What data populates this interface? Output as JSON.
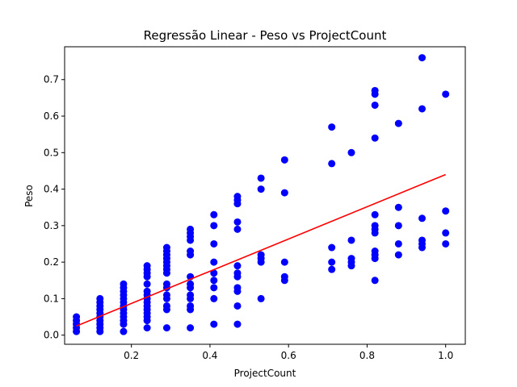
{
  "chart_data": {
    "type": "scatter",
    "title": "Regressão Linear - Peso vs ProjectCount",
    "xlabel": "ProjectCount",
    "ylabel": "Peso",
    "xlim": [
      0.03,
      1.05
    ],
    "ylim": [
      -0.025,
      0.79
    ],
    "xticks": [
      0.2,
      0.4,
      0.6,
      0.8,
      1.0
    ],
    "xtick_labels": [
      "0.2",
      "0.4",
      "0.6",
      "0.8",
      "1.0"
    ],
    "yticks": [
      0.0,
      0.1,
      0.2,
      0.3,
      0.4,
      0.5,
      0.6,
      0.7
    ],
    "ytick_labels": [
      "0.0",
      "0.1",
      "0.2",
      "0.3",
      "0.4",
      "0.5",
      "0.6",
      "0.7"
    ],
    "grid": false,
    "legend": "none",
    "colors": {
      "points": "#0000ff",
      "line": "#ff0000",
      "axes": "#000000"
    },
    "series": [
      {
        "kind": "scatter",
        "points": [
          [
            0.06,
            0.01
          ],
          [
            0.06,
            0.02
          ],
          [
            0.06,
            0.03
          ],
          [
            0.06,
            0.04
          ],
          [
            0.06,
            0.05
          ],
          [
            0.12,
            0.01
          ],
          [
            0.12,
            0.02
          ],
          [
            0.12,
            0.03
          ],
          [
            0.12,
            0.04
          ],
          [
            0.12,
            0.05
          ],
          [
            0.12,
            0.06
          ],
          [
            0.12,
            0.07
          ],
          [
            0.12,
            0.08
          ],
          [
            0.12,
            0.09
          ],
          [
            0.12,
            0.1
          ],
          [
            0.18,
            0.01
          ],
          [
            0.18,
            0.03
          ],
          [
            0.18,
            0.04
          ],
          [
            0.18,
            0.05
          ],
          [
            0.18,
            0.06
          ],
          [
            0.18,
            0.07
          ],
          [
            0.18,
            0.08
          ],
          [
            0.18,
            0.09
          ],
          [
            0.18,
            0.1
          ],
          [
            0.18,
            0.11
          ],
          [
            0.18,
            0.12
          ],
          [
            0.18,
            0.13
          ],
          [
            0.18,
            0.14
          ],
          [
            0.24,
            0.02
          ],
          [
            0.24,
            0.04
          ],
          [
            0.24,
            0.05
          ],
          [
            0.24,
            0.06
          ],
          [
            0.24,
            0.07
          ],
          [
            0.24,
            0.08
          ],
          [
            0.24,
            0.09
          ],
          [
            0.24,
            0.1
          ],
          [
            0.24,
            0.11
          ],
          [
            0.24,
            0.12
          ],
          [
            0.24,
            0.14
          ],
          [
            0.24,
            0.16
          ],
          [
            0.24,
            0.17
          ],
          [
            0.24,
            0.18
          ],
          [
            0.24,
            0.19
          ],
          [
            0.29,
            0.02
          ],
          [
            0.29,
            0.07
          ],
          [
            0.29,
            0.08
          ],
          [
            0.29,
            0.1
          ],
          [
            0.29,
            0.11
          ],
          [
            0.29,
            0.13
          ],
          [
            0.29,
            0.14
          ],
          [
            0.29,
            0.17
          ],
          [
            0.29,
            0.18
          ],
          [
            0.29,
            0.19
          ],
          [
            0.29,
            0.2
          ],
          [
            0.29,
            0.21
          ],
          [
            0.29,
            0.22
          ],
          [
            0.29,
            0.23
          ],
          [
            0.29,
            0.24
          ],
          [
            0.35,
            0.02
          ],
          [
            0.35,
            0.07
          ],
          [
            0.35,
            0.08
          ],
          [
            0.35,
            0.1
          ],
          [
            0.35,
            0.11
          ],
          [
            0.35,
            0.13
          ],
          [
            0.35,
            0.14
          ],
          [
            0.35,
            0.16
          ],
          [
            0.35,
            0.22
          ],
          [
            0.35,
            0.23
          ],
          [
            0.35,
            0.26
          ],
          [
            0.35,
            0.27
          ],
          [
            0.35,
            0.28
          ],
          [
            0.35,
            0.29
          ],
          [
            0.41,
            0.03
          ],
          [
            0.41,
            0.1
          ],
          [
            0.41,
            0.13
          ],
          [
            0.41,
            0.15
          ],
          [
            0.41,
            0.17
          ],
          [
            0.41,
            0.2
          ],
          [
            0.41,
            0.25
          ],
          [
            0.41,
            0.3
          ],
          [
            0.41,
            0.33
          ],
          [
            0.47,
            0.03
          ],
          [
            0.47,
            0.08
          ],
          [
            0.47,
            0.12
          ],
          [
            0.47,
            0.13
          ],
          [
            0.47,
            0.16
          ],
          [
            0.47,
            0.17
          ],
          [
            0.47,
            0.19
          ],
          [
            0.47,
            0.29
          ],
          [
            0.47,
            0.31
          ],
          [
            0.47,
            0.36
          ],
          [
            0.47,
            0.37
          ],
          [
            0.47,
            0.38
          ],
          [
            0.53,
            0.1
          ],
          [
            0.53,
            0.2
          ],
          [
            0.53,
            0.21
          ],
          [
            0.53,
            0.22
          ],
          [
            0.53,
            0.4
          ],
          [
            0.53,
            0.43
          ],
          [
            0.59,
            0.15
          ],
          [
            0.59,
            0.16
          ],
          [
            0.59,
            0.2
          ],
          [
            0.59,
            0.39
          ],
          [
            0.59,
            0.48
          ],
          [
            0.71,
            0.18
          ],
          [
            0.71,
            0.2
          ],
          [
            0.71,
            0.24
          ],
          [
            0.71,
            0.47
          ],
          [
            0.71,
            0.57
          ],
          [
            0.76,
            0.19
          ],
          [
            0.76,
            0.2
          ],
          [
            0.76,
            0.21
          ],
          [
            0.76,
            0.26
          ],
          [
            0.76,
            0.5
          ],
          [
            0.82,
            0.15
          ],
          [
            0.82,
            0.21
          ],
          [
            0.82,
            0.22
          ],
          [
            0.82,
            0.23
          ],
          [
            0.82,
            0.28
          ],
          [
            0.82,
            0.29
          ],
          [
            0.82,
            0.3
          ],
          [
            0.82,
            0.33
          ],
          [
            0.82,
            0.54
          ],
          [
            0.82,
            0.63
          ],
          [
            0.82,
            0.66
          ],
          [
            0.82,
            0.67
          ],
          [
            0.88,
            0.22
          ],
          [
            0.88,
            0.25
          ],
          [
            0.88,
            0.3
          ],
          [
            0.88,
            0.35
          ],
          [
            0.88,
            0.58
          ],
          [
            0.94,
            0.24
          ],
          [
            0.94,
            0.25
          ],
          [
            0.94,
            0.26
          ],
          [
            0.94,
            0.32
          ],
          [
            0.94,
            0.62
          ],
          [
            0.94,
            0.76
          ],
          [
            1.0,
            0.25
          ],
          [
            1.0,
            0.28
          ],
          [
            1.0,
            0.34
          ],
          [
            1.0,
            0.66
          ]
        ]
      },
      {
        "kind": "line",
        "points": [
          [
            0.06,
            0.025
          ],
          [
            1.0,
            0.44
          ]
        ]
      }
    ]
  }
}
